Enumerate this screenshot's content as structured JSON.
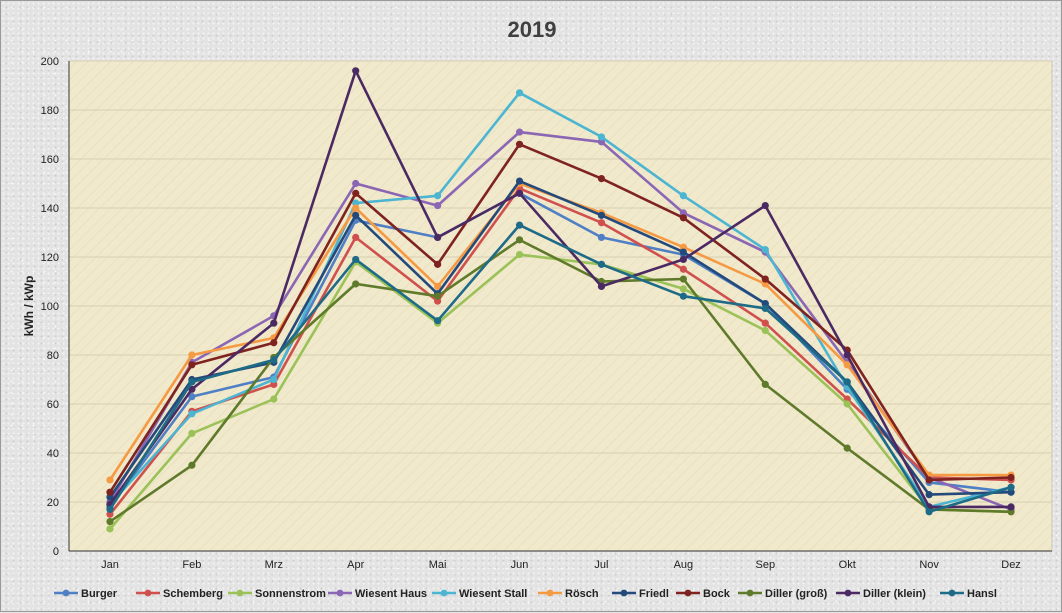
{
  "chart_data": {
    "type": "line",
    "title": "2019",
    "xlabel": "",
    "ylabel": "kWh / kWp",
    "ylim": [
      0,
      200
    ],
    "ytick_step": 20,
    "grid": true,
    "legend_position": "bottom",
    "categories": [
      "Jan",
      "Feb",
      "Mrz",
      "Apr",
      "Mai",
      "Jun",
      "Jul",
      "Aug",
      "Sep",
      "Okt",
      "Nov",
      "Dez"
    ],
    "series": [
      {
        "name": "Burger",
        "color": "#4f7fc4",
        "values": [
          18,
          63,
          71,
          135,
          128,
          146,
          128,
          121,
          101,
          66,
          28,
          24
        ]
      },
      {
        "name": "Schemberg",
        "color": "#d0504e",
        "values": [
          15,
          57,
          68,
          128,
          102,
          148,
          134,
          115,
          93,
          62,
          30,
          29
        ]
      },
      {
        "name": "Sonnenstrom",
        "color": "#9bc258",
        "values": [
          9,
          48,
          62,
          118,
          93,
          121,
          117,
          107,
          90,
          60,
          17,
          16
        ]
      },
      {
        "name": "Wiesent Haus",
        "color": "#8a66b4",
        "values": [
          20,
          77,
          96,
          150,
          141,
          171,
          167,
          138,
          122,
          77,
          30,
          17
        ]
      },
      {
        "name": "Wiesent Stall",
        "color": "#4cb5d1",
        "values": [
          19,
          56,
          70,
          142,
          145,
          187,
          169,
          145,
          123,
          67,
          18,
          26
        ]
      },
      {
        "name": "Rösch",
        "color": "#f59a42",
        "values": [
          29,
          80,
          87,
          140,
          108,
          150,
          138,
          124,
          109,
          76,
          31,
          31
        ]
      },
      {
        "name": "Friedl",
        "color": "#244a7c",
        "values": [
          22,
          70,
          77,
          137,
          105,
          151,
          137,
          122,
          101,
          69,
          23,
          24
        ]
      },
      {
        "name": "Bock",
        "color": "#7e231f",
        "values": [
          24,
          76,
          85,
          146,
          117,
          166,
          152,
          136,
          111,
          82,
          29,
          30
        ]
      },
      {
        "name": "Diller (groß)",
        "color": "#5e7a2a",
        "values": [
          12,
          35,
          79,
          109,
          104,
          127,
          110,
          111,
          68,
          42,
          17,
          16
        ]
      },
      {
        "name": "Diller (klein)",
        "color": "#4b2963",
        "values": [
          19,
          66,
          93,
          196,
          128,
          146,
          108,
          119,
          141,
          80,
          18,
          18
        ]
      },
      {
        "name": "Hansl",
        "color": "#1e6b87",
        "values": [
          17,
          69,
          78,
          119,
          94,
          133,
          117,
          104,
          99,
          69,
          16,
          26
        ]
      }
    ]
  },
  "colors": {
    "plot_background": "#f1e9cc",
    "grid": "#d8cfb0",
    "axis": "#333333"
  }
}
